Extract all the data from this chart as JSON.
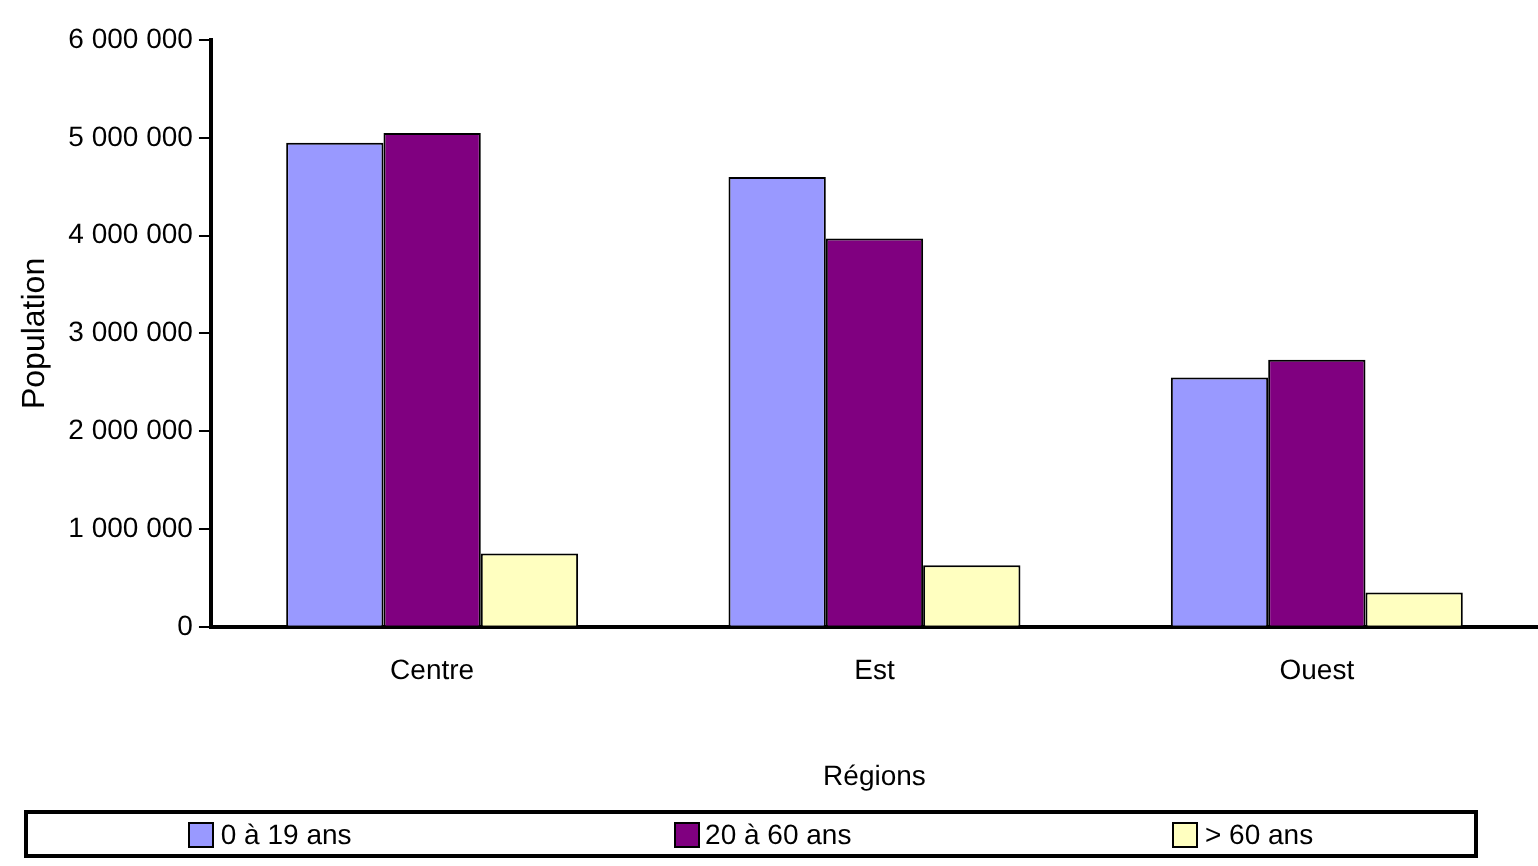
{
  "chart_data": {
    "type": "bar",
    "xlabel": "Régions",
    "ylabel": "Population",
    "categories": [
      "Centre",
      "Est",
      "Ouest"
    ],
    "series": [
      {
        "name": "0 à 19 ans",
        "color": "#9999ff",
        "values": [
          4950000,
          4600000,
          2550000
        ]
      },
      {
        "name": "20 à 60 ans",
        "color": "#800080",
        "values": [
          5050000,
          3970000,
          2730000
        ]
      },
      {
        "name": "> 60 ans",
        "color": "#ffffc0",
        "values": [
          750000,
          630000,
          350000
        ]
      }
    ],
    "ylim": [
      0,
      6000000
    ],
    "yticks": [
      {
        "value": 0,
        "label": "0"
      },
      {
        "value": 1000000,
        "label": "1 000 000"
      },
      {
        "value": 2000000,
        "label": "2 000 000"
      },
      {
        "value": 3000000,
        "label": "3 000 000"
      },
      {
        "value": 4000000,
        "label": "4 000 000"
      },
      {
        "value": 5000000,
        "label": "5 000 000"
      },
      {
        "value": 6000000,
        "label": "6 000 000"
      }
    ],
    "grid": false,
    "legend": "bottom"
  }
}
